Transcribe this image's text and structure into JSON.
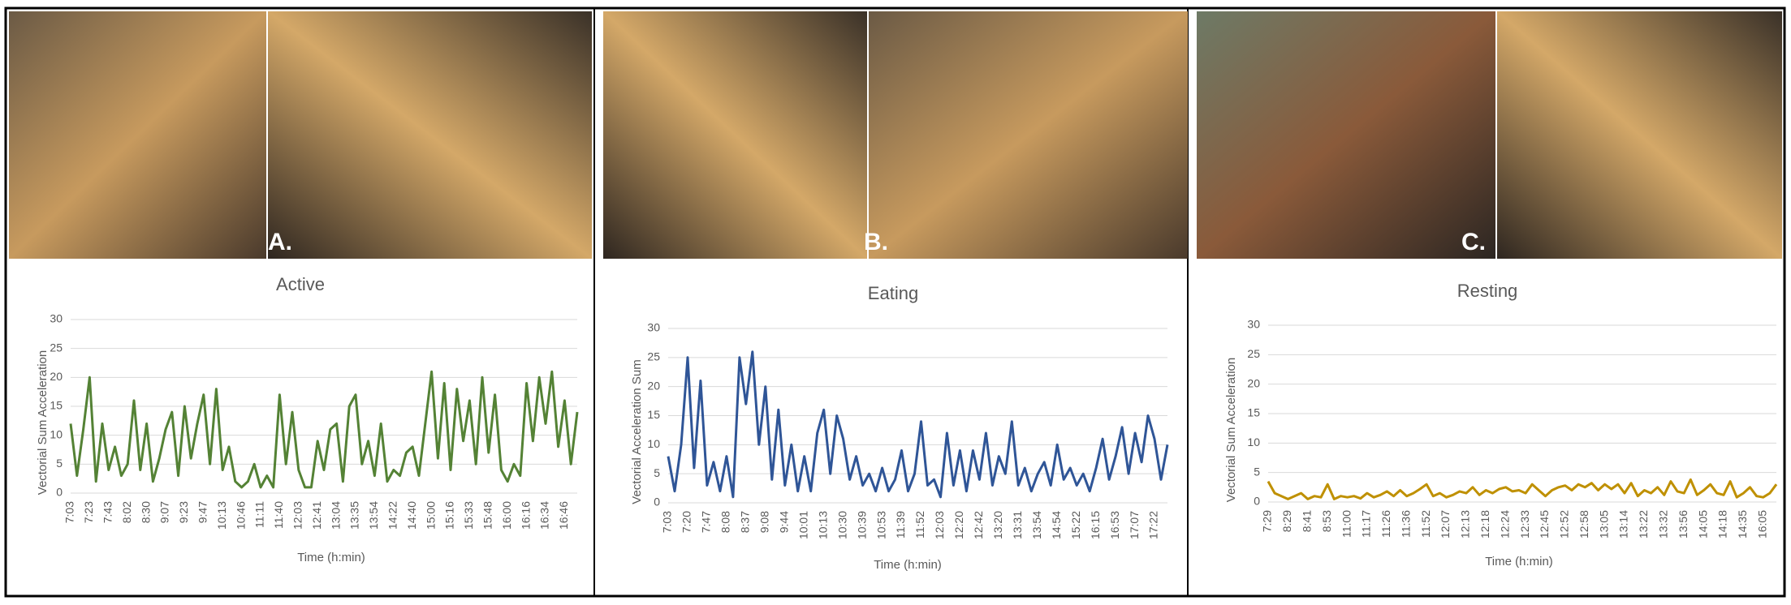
{
  "panel_labels": [
    "A.",
    "B.",
    "C."
  ],
  "chart_data": [
    {
      "type": "line",
      "title": "Active",
      "x_label": "Time (h:min)",
      "y_label": "Vectorial Sum Acceleration",
      "color": "#548235",
      "ylim": [
        0,
        30
      ],
      "yticks": [
        0,
        5,
        10,
        15,
        20,
        25,
        30
      ],
      "grid": true,
      "categories": [
        "7:03",
        null,
        null,
        "7:23",
        null,
        null,
        "7:43",
        null,
        null,
        "8:02",
        null,
        null,
        "8:30",
        null,
        null,
        "9:07",
        null,
        null,
        "9:23",
        null,
        null,
        "9:47",
        null,
        null,
        "10:13",
        null,
        null,
        "10:46",
        null,
        null,
        "11:11",
        null,
        null,
        "11:40",
        null,
        null,
        "12:03",
        null,
        null,
        "12:41",
        null,
        null,
        "13:04",
        null,
        null,
        "13:35",
        null,
        null,
        "13:54",
        null,
        null,
        "14:22",
        null,
        null,
        "14:40",
        null,
        null,
        "15:00",
        null,
        null,
        "15:16",
        null,
        null,
        "15:33",
        null,
        null,
        "15:48",
        null,
        null,
        "16:00",
        null,
        null,
        "16:16",
        null,
        null,
        "16:34",
        null,
        null,
        "16:46",
        null,
        null
      ],
      "values": [
        12,
        3,
        11,
        20,
        2,
        12,
        4,
        8,
        3,
        5,
        16,
        4,
        12,
        2,
        6,
        11,
        14,
        3,
        15,
        6,
        12,
        17,
        5,
        18,
        4,
        8,
        2,
        1,
        2,
        5,
        1,
        3,
        1,
        17,
        5,
        14,
        4,
        1,
        1,
        9,
        4,
        11,
        12,
        2,
        15,
        17,
        5,
        9,
        3,
        12,
        2,
        4,
        3,
        7,
        8,
        3,
        12,
        21,
        6,
        19,
        4,
        18,
        9,
        16,
        5,
        20,
        7,
        17,
        4,
        2,
        5,
        3,
        19,
        9,
        20,
        12,
        21,
        8,
        16,
        5,
        14
      ]
    },
    {
      "type": "line",
      "title": "Eating",
      "x_label": "Time (h:min)",
      "y_label": "Vectorial Acceleration Sum",
      "color": "#2f5597",
      "ylim": [
        0,
        30
      ],
      "yticks": [
        0,
        5,
        10,
        15,
        20,
        25,
        30
      ],
      "grid": true,
      "categories": [
        "7:03",
        null,
        null,
        "7:20",
        null,
        null,
        "7:47",
        null,
        null,
        "8:08",
        null,
        null,
        "8:37",
        null,
        null,
        "9:08",
        null,
        null,
        "9:44",
        null,
        null,
        "10:01",
        null,
        null,
        "10:13",
        null,
        null,
        "10:30",
        null,
        null,
        "10:39",
        null,
        null,
        "10:53",
        null,
        null,
        "11:39",
        null,
        null,
        "11:52",
        null,
        null,
        "12:03",
        null,
        null,
        "12:20",
        null,
        null,
        "12:42",
        null,
        null,
        "13:20",
        null,
        null,
        "13:31",
        null,
        null,
        "13:54",
        null,
        null,
        "14:54",
        null,
        null,
        "15:22",
        null,
        null,
        "16:15",
        null,
        null,
        "16:53",
        null,
        null,
        "17:07",
        null,
        null,
        "17:22",
        null,
        null
      ],
      "values": [
        8,
        2,
        10,
        25,
        6,
        21,
        3,
        7,
        2,
        8,
        1,
        25,
        17,
        26,
        10,
        20,
        4,
        16,
        3,
        10,
        2,
        8,
        2,
        12,
        16,
        5,
        15,
        11,
        4,
        8,
        3,
        5,
        2,
        6,
        2,
        4,
        9,
        2,
        5,
        14,
        3,
        4,
        1,
        12,
        3,
        9,
        2,
        9,
        4,
        12,
        3,
        8,
        5,
        14,
        3,
        6,
        2,
        5,
        7,
        3,
        10,
        4,
        6,
        3,
        5,
        2,
        6,
        11,
        4,
        8,
        13,
        5,
        12,
        7,
        15,
        11,
        4,
        10
      ]
    },
    {
      "type": "line",
      "title": "Resting",
      "x_label": "Time (h:min)",
      "y_label": "Vectorial Sum Acceleration",
      "color": "#bf9000",
      "ylim": [
        0,
        30
      ],
      "yticks": [
        0,
        5,
        10,
        15,
        20,
        25,
        30
      ],
      "grid": true,
      "categories": [
        "7:29",
        null,
        null,
        "8:29",
        null,
        null,
        "8:41",
        null,
        null,
        "8:53",
        null,
        null,
        "11:00",
        null,
        null,
        "11:17",
        null,
        null,
        "11:26",
        null,
        null,
        "11:36",
        null,
        null,
        "11:52",
        null,
        null,
        "12:07",
        null,
        null,
        "12:13",
        null,
        null,
        "12:18",
        null,
        null,
        "12:24",
        null,
        null,
        "12:33",
        null,
        null,
        "12:45",
        null,
        null,
        "12:52",
        null,
        null,
        "12:58",
        null,
        null,
        "13:05",
        null,
        null,
        "13:14",
        null,
        null,
        "13:22",
        null,
        null,
        "13:32",
        null,
        null,
        "13:56",
        null,
        null,
        "14:05",
        null,
        null,
        "14:18",
        null,
        null,
        "14:35",
        null,
        null,
        "16:05",
        null,
        null
      ],
      "values": [
        3.5,
        1.5,
        1,
        0.5,
        1,
        1.5,
        0.5,
        1,
        0.8,
        3,
        0.5,
        1,
        0.8,
        1,
        0.6,
        1.5,
        0.8,
        1.2,
        1.8,
        1,
        2,
        1,
        1.5,
        2.2,
        3,
        1,
        1.5,
        0.8,
        1.2,
        1.8,
        1.5,
        2.5,
        1.2,
        2,
        1.5,
        2.2,
        2.5,
        1.8,
        2,
        1.5,
        3,
        2,
        1,
        2,
        2.5,
        2.8,
        2,
        3,
        2.5,
        3.2,
        2,
        3,
        2.2,
        3,
        1.5,
        3.2,
        1,
        2,
        1.5,
        2.5,
        1.2,
        3.5,
        1.8,
        1.5,
        3.8,
        1.2,
        2,
        3,
        1.5,
        1.2,
        3.5,
        0.8,
        1.5,
        2.5,
        1,
        0.8,
        1.5,
        3
      ]
    }
  ]
}
